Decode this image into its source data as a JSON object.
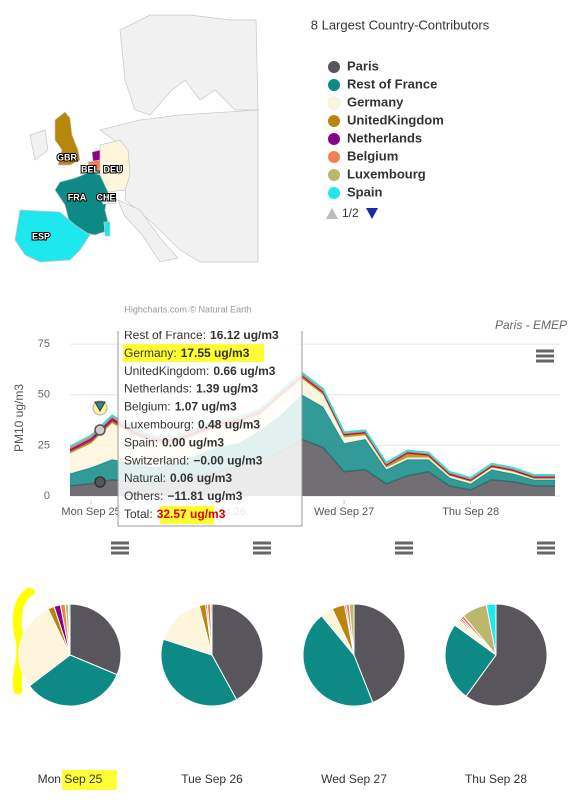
{
  "map": {
    "labels": [
      "GBR",
      "BEL",
      "DEU",
      "FRA",
      "CHE",
      "ESP"
    ],
    "credit": "Highcharts.com © Natural Earth"
  },
  "chart_data": [
    {
      "type": "area",
      "stacked": true,
      "subtitle": "Paris - EMEP",
      "y_label": "PM10 ug/m3",
      "legend_title": "8 Largest Country-Contributors",
      "legend_pager": "1/2",
      "x": [
        -4,
        0,
        4,
        8,
        12,
        16,
        20,
        24,
        28,
        32,
        36,
        40,
        44,
        48,
        52,
        56,
        60,
        64,
        68,
        72,
        76,
        80,
        84,
        88
      ],
      "xlim": [
        -4,
        88
      ],
      "xticks": [
        {
          "value": 0,
          "label": "Mon Sep 25"
        },
        {
          "value": 24,
          "label": "Tue Sep 26"
        },
        {
          "value": 48,
          "label": "Wed Sep 27"
        },
        {
          "value": 72,
          "label": "Thu Sep 28"
        }
      ],
      "ylim": [
        -2,
        81
      ],
      "yticks": [
        0,
        25,
        50,
        75
      ],
      "grid": true,
      "series": [
        {
          "name": "Paris",
          "color": "#58565c",
          "values": [
            5,
            6,
            8,
            7,
            6,
            8,
            10,
            12,
            14,
            18,
            22,
            28,
            24,
            12,
            13,
            6,
            10,
            12,
            5,
            3,
            8,
            7,
            5,
            5
          ]
        },
        {
          "name": "Rest of France",
          "color": "#0e8a86",
          "values": [
            6,
            8,
            10,
            9,
            8,
            8,
            10,
            12,
            12,
            14,
            18,
            22,
            20,
            14,
            15,
            7,
            8,
            6,
            4,
            3,
            5,
            4,
            3,
            3
          ]
        },
        {
          "name": "Germany",
          "color": "#fdf5dc",
          "values": [
            10,
            12,
            18,
            14,
            12,
            10,
            10,
            10,
            10,
            8,
            9,
            8,
            6,
            3,
            2,
            1,
            1,
            1,
            1,
            1,
            1,
            1,
            0.5,
            0.5
          ]
        },
        {
          "name": "UnitedKingdom",
          "color": "#b8860b",
          "values": [
            1,
            1,
            1,
            1,
            1,
            1,
            1,
            1,
            1,
            1,
            1,
            1,
            1,
            1,
            1,
            1,
            2,
            1,
            0.5,
            0.5,
            0.5,
            0.5,
            0.5,
            0.5
          ]
        },
        {
          "name": "Netherlands",
          "color": "#8b008b",
          "values": [
            1,
            1.4,
            1.4,
            1,
            1,
            1,
            1,
            1,
            0.5,
            0.5,
            0.5,
            0.5,
            0.5,
            0.5,
            0.5,
            0.5,
            0.5,
            0.5,
            0.5,
            0.5,
            0.5,
            0.5,
            0.5,
            0.5
          ]
        },
        {
          "name": "Belgium",
          "color": "#f08050",
          "values": [
            1,
            1,
            1,
            1,
            1,
            1,
            1,
            1,
            1,
            1,
            1,
            1,
            1,
            0.5,
            0.5,
            0.5,
            0.5,
            0.5,
            0.5,
            0.5,
            0.5,
            0.5,
            0.5,
            0.5
          ]
        },
        {
          "name": "Luxembourg",
          "color": "#bdb76b",
          "values": [
            0.5,
            0.5,
            0.5,
            0.5,
            0.5,
            0.5,
            0.5,
            0.5,
            0.5,
            0.5,
            0.5,
            0.5,
            0.5,
            0.5,
            0.5,
            0.5,
            0.5,
            0.5,
            0.5,
            0.5,
            0.5,
            0.5,
            0.5,
            0.5
          ]
        },
        {
          "name": "Spain",
          "color": "#1ee8ee",
          "values": [
            0,
            0,
            0,
            0,
            0,
            0,
            0,
            0,
            0,
            0,
            0,
            0,
            0,
            0,
            0,
            0,
            0,
            0,
            0,
            0,
            0,
            0,
            0,
            0
          ]
        }
      ],
      "tooltip": {
        "rows": [
          {
            "label": "Rest of France:",
            "value": "16.12 ug/m3"
          },
          {
            "label": "Germany:",
            "value": "17.55 ug/m3"
          },
          {
            "label": "UnitedKingdom:",
            "value": "0.66 ug/m3"
          },
          {
            "label": "Netherlands:",
            "value": "1.39 ug/m3"
          },
          {
            "label": "Belgium:",
            "value": "1.07 ug/m3"
          },
          {
            "label": "Luxembourg:",
            "value": "0.48 ug/m3"
          },
          {
            "label": "Spain:",
            "value": "0.00 ug/m3"
          },
          {
            "label": "Switzerland:",
            "value": "−0.00 ug/m3"
          },
          {
            "label": "Natural:",
            "value": "0.06 ug/m3"
          },
          {
            "label": "Others:",
            "value": "−11.81 ug/m3"
          },
          {
            "label": "Total:",
            "value": "32.57 ug/m3"
          }
        ]
      }
    },
    {
      "type": "pie",
      "label": "Mon Sep 25",
      "values": [
        31,
        33,
        28,
        2,
        2,
        1.5,
        1,
        0.5
      ]
    },
    {
      "type": "pie",
      "label": "Tue Sep 26",
      "values": [
        42,
        38,
        16,
        2,
        0.5,
        1,
        0.5,
        0
      ]
    },
    {
      "type": "pie",
      "label": "Wed Sep 27",
      "values": [
        44,
        45,
        4,
        4,
        0.5,
        1,
        1.5,
        0
      ]
    },
    {
      "type": "pie",
      "label": "Thu Sep 28",
      "values": [
        60,
        25,
        2,
        0.5,
        0.5,
        1,
        8,
        3
      ]
    }
  ]
}
